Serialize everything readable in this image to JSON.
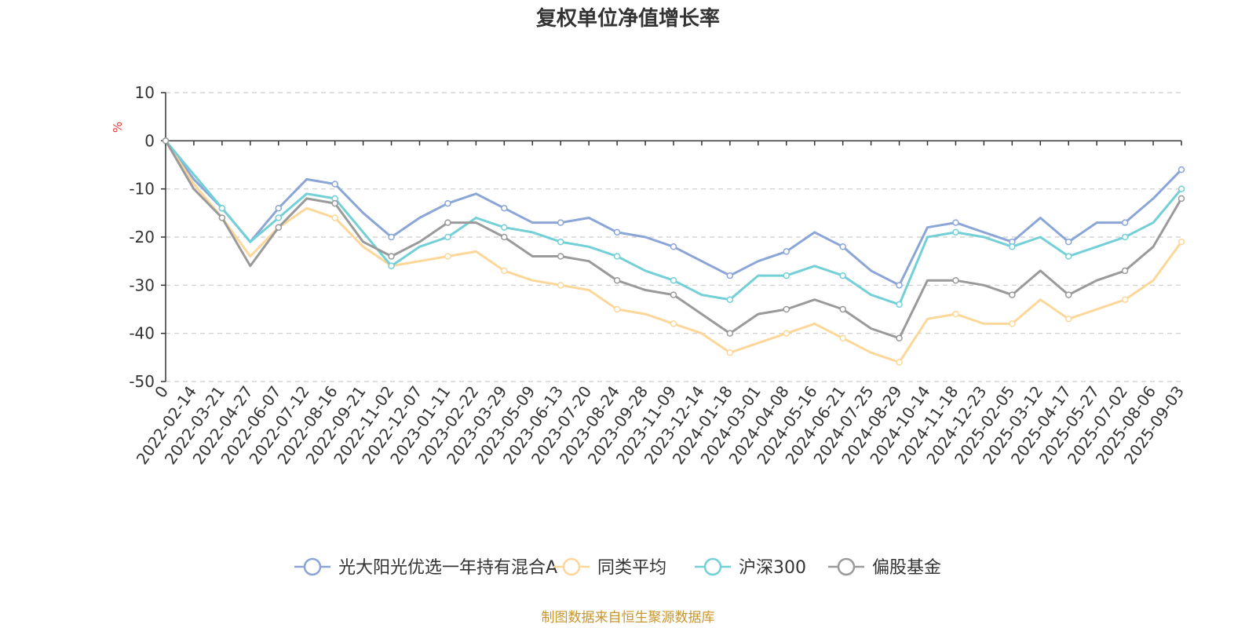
{
  "chart_data": {
    "type": "line",
    "title": "复权单位净值增长率",
    "ylabel": "%",
    "ylim": [
      -50,
      10
    ],
    "yticks": [
      10,
      0,
      -10,
      -20,
      -30,
      -40,
      -50
    ],
    "grid": true,
    "legend_position": "bottom",
    "x": [
      "0",
      "2022-02-14",
      "2022-03-21",
      "2022-04-27",
      "2022-06-07",
      "2022-07-12",
      "2022-08-16",
      "2022-09-21",
      "2022-11-02",
      "2022-12-07",
      "2023-01-11",
      "2023-02-22",
      "2023-03-29",
      "2023-05-09",
      "2023-06-13",
      "2023-07-20",
      "2023-08-24",
      "2023-09-28",
      "2023-11-09",
      "2023-12-14",
      "2024-01-18",
      "2024-03-01",
      "2024-04-08",
      "2024-05-16",
      "2024-06-21",
      "2024-07-25",
      "2024-08-29",
      "2024-10-14",
      "2024-11-18",
      "2024-12-23",
      "2025-02-05",
      "2025-03-12",
      "2025-04-17",
      "2025-05-27",
      "2025-07-02",
      "2025-08-06",
      "2025-09-03"
    ],
    "series": [
      {
        "name": "光大阳光优选一年持有混合A",
        "color": "#8ba6d6",
        "values": [
          0,
          -8,
          -14,
          -21,
          -14,
          -8,
          -9,
          -15,
          -20,
          -16,
          -13,
          -11,
          -14,
          -17,
          -17,
          -16,
          -19,
          -20,
          -22,
          -25,
          -28,
          -25,
          -23,
          -19,
          -22,
          -27,
          -30,
          -18,
          -17,
          -19,
          -21,
          -16,
          -21,
          -17,
          -17,
          -12,
          -6
        ]
      },
      {
        "name": "同类平均",
        "color": "#fcd799",
        "values": [
          0,
          -9,
          -16,
          -24,
          -18,
          -14,
          -16,
          -22,
          -26,
          -25,
          -24,
          -23,
          -27,
          -29,
          -30,
          -31,
          -35,
          -36,
          -38,
          -40,
          -44,
          -42,
          -40,
          -38,
          -41,
          -44,
          -46,
          -37,
          -36,
          -38,
          -38,
          -33,
          -37,
          -35,
          -33,
          -29,
          -21
        ]
      },
      {
        "name": "沪深300",
        "color": "#72d0d6",
        "values": [
          0,
          -7,
          -14,
          -21,
          -16,
          -11,
          -12,
          -19,
          -26,
          -22,
          -20,
          -16,
          -18,
          -19,
          -21,
          -22,
          -24,
          -27,
          -29,
          -32,
          -33,
          -28,
          -28,
          -26,
          -28,
          -32,
          -34,
          -20,
          -19,
          -20,
          -22,
          -20,
          -24,
          -22,
          -20,
          -17,
          -10
        ]
      },
      {
        "name": "偏股基金",
        "color": "#9a9a9a",
        "values": [
          0,
          -10,
          -16,
          -26,
          -18,
          -12,
          -13,
          -21,
          -24,
          -21,
          -17,
          -17,
          -20,
          -24,
          -24,
          -25,
          -29,
          -31,
          -32,
          -36,
          -40,
          -36,
          -35,
          -33,
          -35,
          -39,
          -41,
          -29,
          -29,
          -30,
          -32,
          -27,
          -32,
          -29,
          -27,
          -22,
          -12
        ]
      }
    ]
  },
  "source_note": "制图数据来自恒生聚源数据库"
}
